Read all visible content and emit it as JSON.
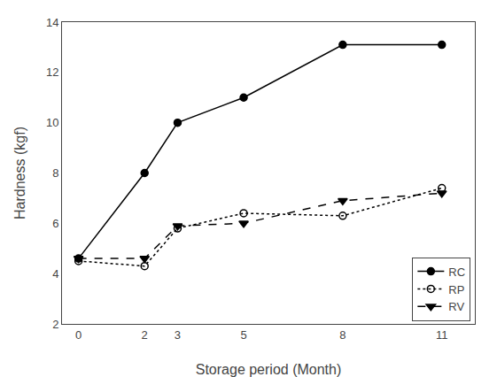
{
  "chart_data": {
    "type": "line",
    "xlabel": "Storage period (Month)",
    "ylabel": "Hardness (kgf)",
    "x": [
      0,
      2,
      3,
      5,
      8,
      11
    ],
    "series": [
      {
        "name": "RC",
        "color": "#000000",
        "marker": "circle",
        "line_style": "solid",
        "values": [
          4.6,
          8.0,
          10.0,
          11.0,
          13.1,
          13.1
        ]
      },
      {
        "name": "RP",
        "color": "#000000",
        "marker": "circle-open",
        "line_style": "dot",
        "values": [
          4.5,
          4.3,
          5.8,
          6.4,
          6.3,
          7.4
        ]
      },
      {
        "name": "RV",
        "color": "#000000",
        "marker": "triangle-down",
        "line_style": "dash",
        "values": [
          4.6,
          4.6,
          5.9,
          6.0,
          6.9,
          7.2
        ]
      }
    ],
    "xlim": [
      -0.5,
      12
    ],
    "xticks": [
      0,
      2,
      3,
      5,
      8,
      11
    ],
    "ylim": [
      2,
      14
    ],
    "yticks": [
      2,
      4,
      6,
      8,
      10,
      12,
      14
    ],
    "grid": false,
    "legend": "lower right"
  }
}
